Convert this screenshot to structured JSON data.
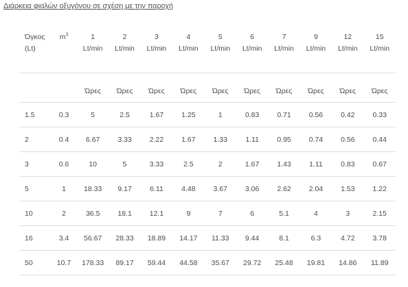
{
  "caption": "Διάρκεια φιαλών οξυγόνου σε σχέση με την παροχή",
  "header": {
    "volume_label_line1": "Όγκος",
    "volume_label_line2": "(Lt)",
    "m3_base": "m",
    "m3_exp": "3",
    "flow_unit": "Lt/min",
    "flows": [
      "1",
      "2",
      "3",
      "4",
      "5",
      "6",
      "7",
      "9",
      "12",
      "15"
    ]
  },
  "units_row": {
    "hours_label": "Ώρες"
  },
  "rows": [
    {
      "volume": "1.5",
      "m3": "0.3",
      "hours": [
        "5",
        "2.5",
        "1.67",
        "1.25",
        "1",
        "0.83",
        "0.71",
        "0.56",
        "0.42",
        "0.33"
      ]
    },
    {
      "volume": "2",
      "m3": "0.4",
      "hours": [
        "6.67",
        "3.33",
        "2.22",
        "1.67",
        "1.33",
        "1.11",
        "0.95",
        "0.74",
        "0.56",
        "0.44"
      ]
    },
    {
      "volume": "3",
      "m3": "0.6",
      "hours": [
        "10",
        "5",
        "3.33",
        "2.5",
        "2",
        "1.67",
        "1.43",
        "1.11",
        "0.83",
        "0.67"
      ]
    },
    {
      "volume": "5",
      "m3": "1",
      "hours": [
        "18.33",
        "9.17",
        "6.11",
        "4.48",
        "3.67",
        "3.06",
        "2.62",
        "2.04",
        "1.53",
        "1.22"
      ]
    },
    {
      "volume": "10",
      "m3": "2",
      "hours": [
        "36.5",
        "18.1",
        "12.1",
        "9",
        "7",
        "6",
        "5.1",
        "4",
        "3",
        "2.15"
      ]
    },
    {
      "volume": "16",
      "m3": "3.4",
      "hours": [
        "56.67",
        "28.33",
        "18.89",
        "14.17",
        "11.33",
        "9.44",
        "8.1",
        "6.3",
        "4.72",
        "3.78"
      ]
    },
    {
      "volume": "50",
      "m3": "10.7",
      "hours": [
        "178.33",
        "89.17",
        "59.44",
        "44.58",
        "35.67",
        "29.72",
        "25.48",
        "19.81",
        "14.86",
        "11.89"
      ]
    }
  ]
}
